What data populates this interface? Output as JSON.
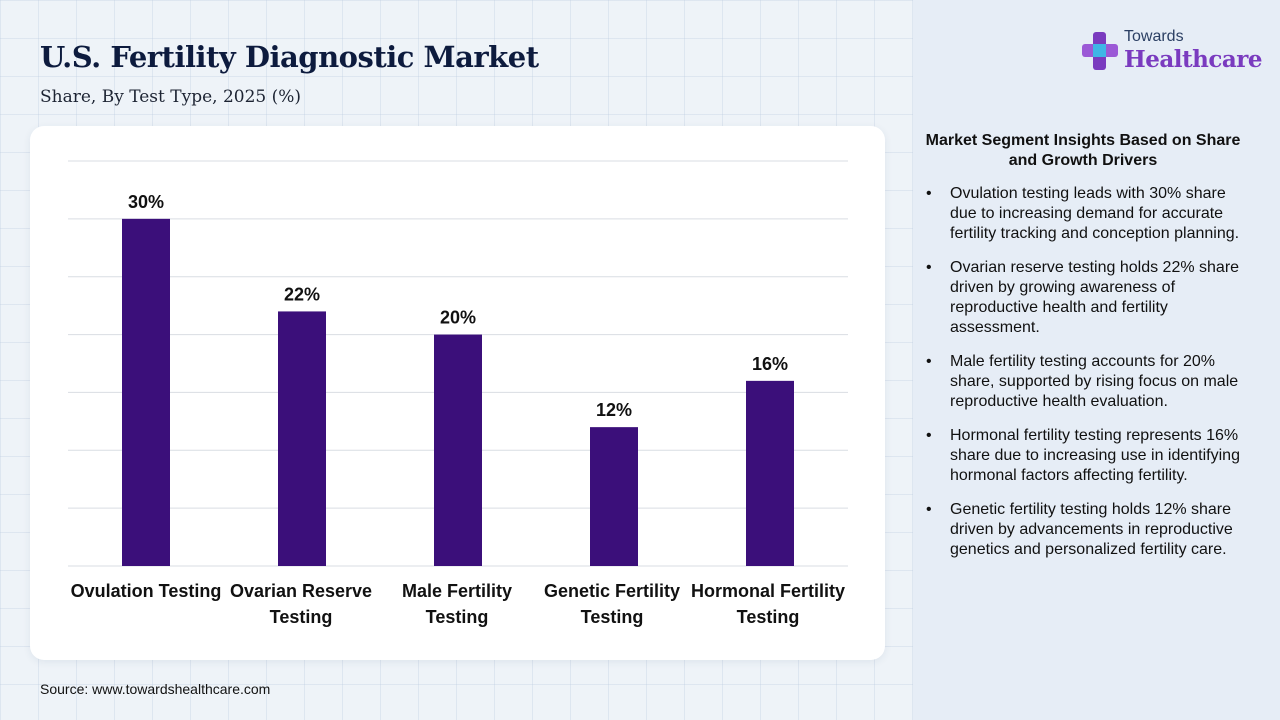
{
  "header": {
    "title": "U.S. Fertility Diagnostic Market",
    "subtitle": "Share, By Test Type, 2025 (%)"
  },
  "logo": {
    "line1": "Towards",
    "line2": "Healthcare"
  },
  "source": "Source: www.towardshealthcare.com",
  "colors": {
    "bar": "#3b0f7a",
    "accent": "#7a3bbf",
    "grid": "#d9dde3"
  },
  "chart_data": {
    "type": "bar",
    "categories": [
      "Ovulation Testing",
      "Ovarian Reserve Testing",
      "Male Fertility Testing",
      "Genetic Fertility Testing",
      "Hormonal Fertility Testing"
    ],
    "values": [
      30,
      22,
      20,
      12,
      16
    ],
    "data_labels": [
      "30%",
      "22%",
      "20%",
      "12%",
      "16%"
    ],
    "ylim": [
      0,
      35
    ],
    "grid": true,
    "title": "",
    "xlabel": "",
    "ylabel": ""
  },
  "insights": {
    "title": "Market Segment Insights Based on Share and Growth Drivers",
    "items": [
      "Ovulation testing leads with 30% share due to increasing demand for accurate fertility tracking and conception planning.",
      "Ovarian reserve testing holds 22% share driven by growing awareness of reproductive health and fertility assessment.",
      "Male fertility testing accounts for 20% share, supported by rising focus on male reproductive health evaluation.",
      "Hormonal fertility testing represents 16% share due to increasing use in identifying hormonal factors affecting fertility.",
      "Genetic fertility testing holds 12% share driven by advancements in reproductive genetics and personalized fertility care."
    ]
  }
}
